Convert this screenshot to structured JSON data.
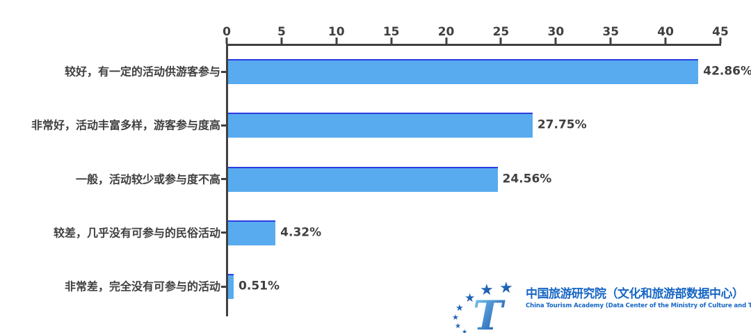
{
  "chart_data": {
    "type": "bar",
    "orientation": "horizontal",
    "title": "",
    "categories": [
      "较好，有一定的活动供游客参与",
      "非常好，活动丰富多样，游客参与度高",
      "一般，活动较少或参与度不高",
      "较差，几乎没有可参与的民俗活动",
      "非常差，完全没有可参与的活动"
    ],
    "values": [
      42.86,
      27.75,
      24.56,
      4.32,
      0.51
    ],
    "value_labels": [
      "42.86%",
      "27.75%",
      "24.56%",
      "4.32%",
      "0.51%"
    ],
    "xlim": [
      0,
      45
    ],
    "x_ticks": [
      0,
      5,
      10,
      15,
      20,
      25,
      30,
      35,
      40,
      45
    ],
    "axis_position": "top",
    "grid": false,
    "legend": false,
    "bar_color": "#58abef",
    "bar_edge_color": "#2c3ce2",
    "axis_color": "#404040",
    "text_color": "#3f3f3f"
  },
  "footer": {
    "logo": {
      "icon": "china-tourism-academy-emblem",
      "star_color": "#1d5fb8",
      "t_gradient_top": "#7fd0f7",
      "t_gradient_bottom": "#0a3e9d"
    },
    "org_cn": "中国旅游研究院（文化和旅游部数据中心）",
    "org_en": "China Tourism Academy (Data Center of the Ministry of Culture and Tourism)",
    "text_color": "#1766c4"
  }
}
